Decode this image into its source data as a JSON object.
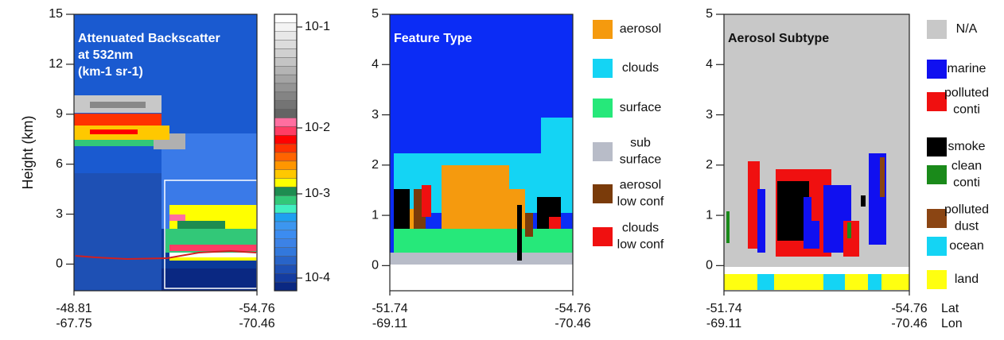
{
  "chart_data": [
    {
      "type": "image",
      "title_lines": [
        "Attenuated Backscatter",
        "at 532nm",
        "(km-1 sr-1)"
      ],
      "y_label": "Height (km)",
      "ylim": [
        -1.6,
        15
      ],
      "yticks": [
        0,
        3,
        6,
        9,
        12,
        15
      ],
      "xlim": [
        -48.81,
        -54.76
      ],
      "xticks": [
        -48.81,
        -54.76
      ],
      "x2ticks": [
        -67.75,
        -70.46
      ],
      "colorbar": {
        "colors": [
          "#ffffff",
          "#f4f4f4",
          "#e8e8e8",
          "#dcdcdc",
          "#d0d0d0",
          "#c4c4c4",
          "#b4b4b4",
          "#a4a4a4",
          "#949494",
          "#848484",
          "#747474",
          "#646464",
          "#ff6ea0",
          "#ff3c64",
          "#ff0000",
          "#ff3200",
          "#ff6400",
          "#ff9600",
          "#ffc800",
          "#ffff00",
          "#1e8c50",
          "#32c878",
          "#40f0c0",
          "#1ea0f0",
          "#3c96f0",
          "#3c8cf0",
          "#3c82e6",
          "#3278dc",
          "#2864c8",
          "#1e50b4",
          "#143ca0",
          "#0a2882"
        ],
        "ticks": [
          "10-1",
          "10-2",
          "10-3",
          "10-4"
        ]
      }
    },
    {
      "type": "image",
      "title_lines": [
        "Feature Type"
      ],
      "ylim": [
        -0.5,
        5
      ],
      "yticks": [
        0,
        1,
        2,
        3,
        4,
        5
      ],
      "xlim": [
        -51.74,
        -54.76
      ],
      "xticks": [
        -51.74,
        -54.76
      ],
      "x2ticks": [
        -69.11,
        -70.46
      ],
      "legend": [
        {
          "lines": [
            "aerosol"
          ],
          "color": "#f59a0e"
        },
        {
          "lines": [
            "clouds"
          ],
          "color": "#14d4f4"
        },
        {
          "lines": [
            "surface"
          ],
          "color": "#26e87a"
        },
        {
          "lines": [
            "sub",
            "surface"
          ],
          "color": "#b8bcc8"
        },
        {
          "lines": [
            "aerosol",
            "low conf"
          ],
          "color": "#7a3b0a"
        },
        {
          "lines": [
            "clouds",
            "low conf"
          ],
          "color": "#f01010"
        }
      ]
    },
    {
      "type": "image",
      "title_lines": [
        "Aerosol Subtype"
      ],
      "ylim": [
        -0.5,
        5
      ],
      "yticks": [
        0,
        1,
        2,
        3,
        4,
        5
      ],
      "xlim": [
        -51.74,
        -54.76
      ],
      "xticks": [
        -51.74,
        -54.76
      ],
      "x2ticks": [
        -69.11,
        -70.46
      ],
      "x_label": "Lat",
      "x2_label": "Lon",
      "legend": [
        {
          "lines": [
            "N/A"
          ],
          "color": "#c8c8c8"
        },
        {
          "lines": [
            "marine"
          ],
          "color": "#1010f0"
        },
        {
          "lines": [
            "polluted",
            "conti"
          ],
          "color": "#f01010"
        },
        {
          "lines": [
            "smoke"
          ],
          "color": "#000000"
        },
        {
          "lines": [
            "clean",
            "conti"
          ],
          "color": "#1a8a1a"
        },
        {
          "lines": [
            "polluted",
            "dust"
          ],
          "color": "#8b4513"
        },
        {
          "lines": [
            "ocean"
          ],
          "color": "#14d4f4"
        },
        {
          "lines": [
            "land"
          ],
          "color": "#ffff10"
        }
      ]
    }
  ]
}
